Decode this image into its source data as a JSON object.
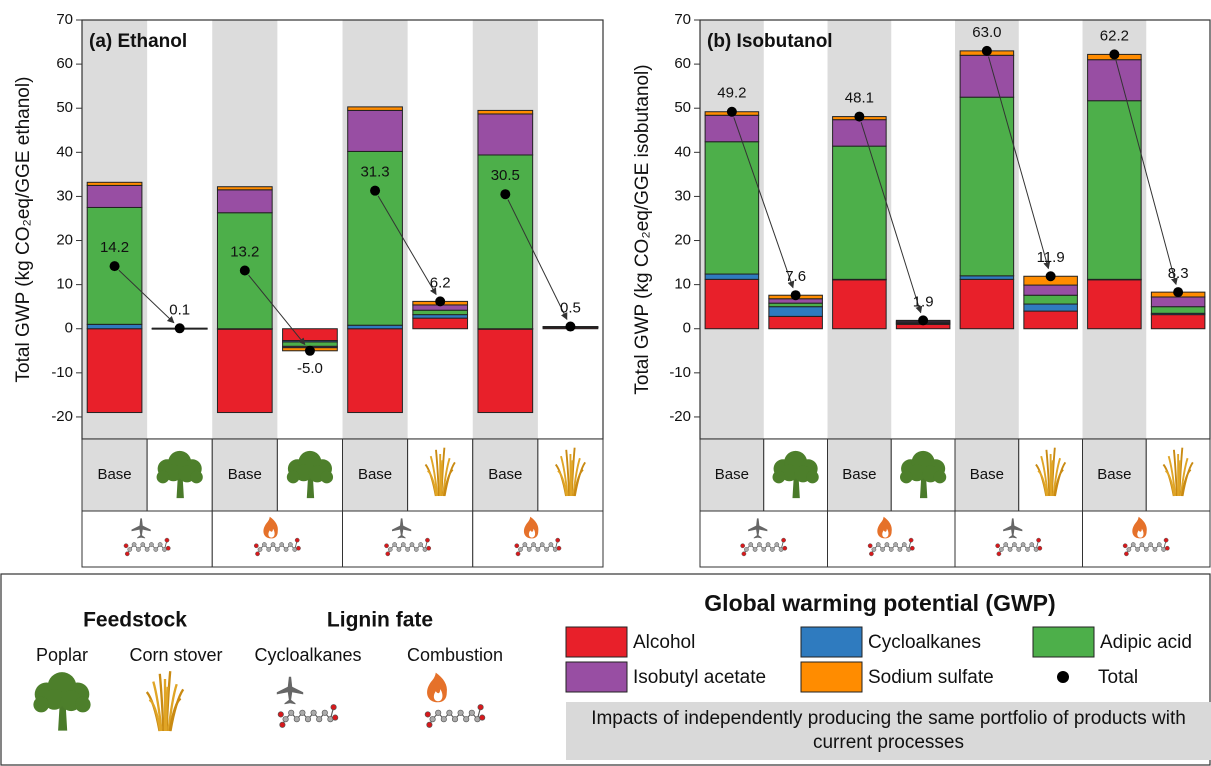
{
  "chart_data": [
    {
      "type": "bar",
      "stacked": true,
      "title": "(a) Ethanol",
      "y_label": "Total GWP (kg CO₂eq/GGE ethanol)",
      "categories": [
        "Base",
        null,
        "Base",
        null,
        "Base",
        null,
        "Base",
        null
      ],
      "ylim": [
        -25,
        70
      ],
      "yticks": [
        -20,
        -10,
        0,
        10,
        20,
        30,
        40,
        50,
        60,
        70
      ],
      "series": [
        {
          "name": "Alcohol",
          "color": "#e8202a",
          "values": [
            -19,
            0.05,
            -19,
            -2.7,
            -19,
            2.4,
            -19,
            0.3
          ]
        },
        {
          "name": "Cycloalkanes",
          "color": "#2f7bbf",
          "values": [
            1,
            0.02,
            0,
            -0.3,
            0.8,
            0.8,
            0,
            0.05
          ]
        },
        {
          "name": "Adipic acid",
          "color": "#4daf4a",
          "values": [
            26.5,
            0.01,
            26.3,
            -1,
            39.4,
            1.0,
            39.4,
            0.05
          ]
        },
        {
          "name": "Isobutyl acetate",
          "color": "#984ea3",
          "values": [
            5,
            0.01,
            5.2,
            -0.3,
            9.3,
            1.2,
            9.3,
            0.05
          ]
        },
        {
          "name": "Sodium sulfate",
          "color": "#ff8c00",
          "values": [
            0.7,
            0.01,
            0.7,
            -0.7,
            0.8,
            0.8,
            0.8,
            0.05
          ]
        }
      ],
      "totals": {
        "name": "Total",
        "color": "#000000",
        "values": [
          14.2,
          0.1,
          13.2,
          -5.0,
          31.3,
          6.2,
          30.5,
          0.5
        ],
        "value_labels": [
          "14.2",
          "0.1",
          "13.2",
          "-5.0",
          "31.3",
          "6.2",
          "30.5",
          "0.5"
        ]
      }
    },
    {
      "type": "bar",
      "stacked": true,
      "title": "(b) Isobutanol",
      "y_label": "Total GWP (kg CO₂eq/GGE isobutanol)",
      "categories": [
        "Base",
        null,
        "Base",
        null,
        "Base",
        null,
        "Base",
        null
      ],
      "ylim": [
        -25,
        70
      ],
      "yticks": [
        -20,
        -10,
        0,
        10,
        20,
        30,
        40,
        50,
        60,
        70
      ],
      "series": [
        {
          "color": "#e8202a",
          "values": [
            11.2,
            2.8,
            11.2,
            1.0,
            11.2,
            4.0,
            11.2,
            3.2
          ]
        },
        {
          "color": "#2f7bbf",
          "values": [
            1.2,
            2.2,
            0,
            0.2,
            0.8,
            1.6,
            0,
            0.3
          ]
        },
        {
          "color": "#4daf4a",
          "values": [
            30,
            0.8,
            30.2,
            0.2,
            40.5,
            2.0,
            40.5,
            1.5
          ]
        },
        {
          "color": "#984ea3",
          "values": [
            6,
            1.0,
            6,
            0.3,
            9.5,
            2.3,
            9.3,
            2.2
          ]
        },
        {
          "color": "#ff8c00",
          "values": [
            0.8,
            0.8,
            0.7,
            0.2,
            1.0,
            2.0,
            1.2,
            1.1
          ]
        }
      ],
      "totals": {
        "color": "#000000",
        "values": [
          49.2,
          7.6,
          48.1,
          1.9,
          63.0,
          11.9,
          62.2,
          8.3
        ],
        "value_labels": [
          "49.2",
          "7.6",
          "48.1",
          "1.9",
          "63.0",
          "11.9",
          "62.2",
          "8.3"
        ]
      }
    }
  ],
  "legend": {
    "feedstock_title": "Feedstock",
    "feedstock": [
      "Poplar",
      "Corn stover"
    ],
    "lignin_title": "Lignin fate",
    "lignin": [
      "Cycloalkanes",
      "Combustion"
    ],
    "gwp_title": "Global warming potential (GWP)",
    "note": "Impacts of independently producing the same portfolio of products with current processes"
  }
}
